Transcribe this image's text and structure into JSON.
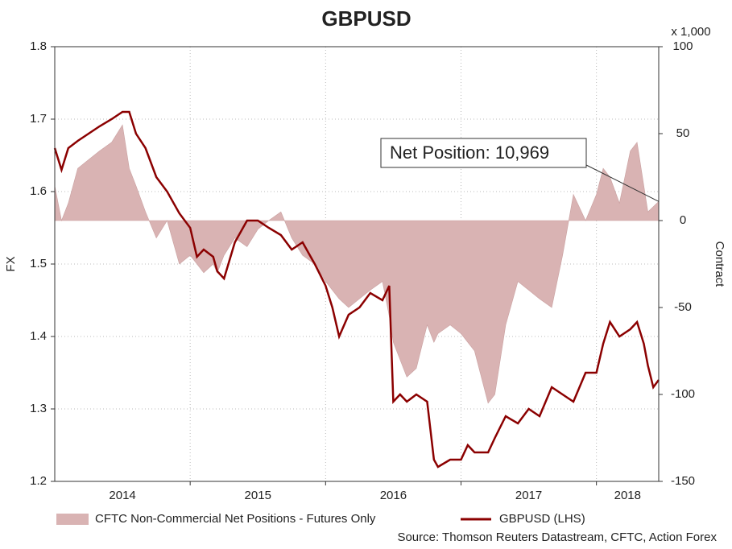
{
  "chart_data": {
    "type": "line-area",
    "title": "GBPUSD",
    "ylabel": "FX",
    "y2label": "Contract",
    "y2unit": "x 1,000",
    "xlim": [
      2014,
      2018.46
    ],
    "xgrid": [
      2015,
      2016,
      2017,
      2018
    ],
    "xticks": [
      {
        "value": 2014.5,
        "label": "2014"
      },
      {
        "value": 2015.5,
        "label": "2015"
      },
      {
        "value": 2016.5,
        "label": "2016"
      },
      {
        "value": 2017.5,
        "label": "2017"
      },
      {
        "value": 2018.23,
        "label": "2018"
      }
    ],
    "ylim": [
      1.2,
      1.8
    ],
    "yticks": [
      1.2,
      1.3,
      1.4,
      1.5,
      1.6,
      1.7,
      1.8
    ],
    "y2lim": [
      -150,
      100
    ],
    "y2ticks": [
      -150,
      -100,
      -50,
      0,
      50,
      100
    ],
    "grid": true,
    "legend": "bottom",
    "x": [
      2014.0,
      2014.05,
      2014.1,
      2014.17,
      2014.25,
      2014.33,
      2014.42,
      2014.5,
      2014.55,
      2014.6,
      2014.67,
      2014.75,
      2014.83,
      2014.92,
      2015.0,
      2015.05,
      2015.1,
      2015.17,
      2015.2,
      2015.25,
      2015.33,
      2015.42,
      2015.5,
      2015.58,
      2015.67,
      2015.75,
      2015.83,
      2015.92,
      2016.0,
      2016.05,
      2016.1,
      2016.17,
      2016.25,
      2016.33,
      2016.42,
      2016.47,
      2016.5,
      2016.55,
      2016.6,
      2016.67,
      2016.75,
      2016.8,
      2016.83,
      2016.92,
      2017.0,
      2017.05,
      2017.1,
      2017.2,
      2017.25,
      2017.33,
      2017.42,
      2017.5,
      2017.58,
      2017.67,
      2017.75,
      2017.83,
      2017.92,
      2018.0,
      2018.05,
      2018.1,
      2018.17,
      2018.25,
      2018.3,
      2018.35,
      2018.38,
      2018.42,
      2018.46
    ],
    "series": [
      {
        "name": "CFTC Non-Commercial Net Positions - Futures Only",
        "kind": "area",
        "axis": "y2",
        "color": "#d9b3b3",
        "values": [
          20,
          0,
          10,
          30,
          35,
          40,
          45,
          55,
          30,
          20,
          5,
          -10,
          0,
          -25,
          -20,
          -25,
          -30,
          -25,
          -30,
          -20,
          -10,
          -15,
          -5,
          0,
          5,
          -10,
          -20,
          -25,
          -35,
          -40,
          -45,
          -50,
          -45,
          -40,
          -35,
          -55,
          -70,
          -80,
          -90,
          -85,
          -60,
          -70,
          -65,
          -60,
          -65,
          -70,
          -75,
          -105,
          -100,
          -60,
          -35,
          -40,
          -45,
          -50,
          -20,
          15,
          0,
          15,
          30,
          25,
          10,
          40,
          45,
          20,
          5,
          8,
          10.969
        ]
      },
      {
        "name": "GBPUSD (LHS)",
        "kind": "line",
        "color": "#8b0000",
        "values": [
          1.66,
          1.63,
          1.66,
          1.67,
          1.68,
          1.69,
          1.7,
          1.71,
          1.71,
          1.68,
          1.66,
          1.62,
          1.6,
          1.57,
          1.55,
          1.51,
          1.52,
          1.51,
          1.49,
          1.48,
          1.53,
          1.56,
          1.56,
          1.55,
          1.54,
          1.52,
          1.53,
          1.5,
          1.47,
          1.44,
          1.4,
          1.43,
          1.44,
          1.46,
          1.45,
          1.47,
          1.31,
          1.32,
          1.31,
          1.32,
          1.31,
          1.23,
          1.22,
          1.23,
          1.23,
          1.25,
          1.24,
          1.24,
          1.26,
          1.29,
          1.28,
          1.3,
          1.29,
          1.33,
          1.32,
          1.31,
          1.35,
          1.35,
          1.39,
          1.42,
          1.4,
          1.41,
          1.42,
          1.39,
          1.36,
          1.33,
          1.34
        ]
      }
    ],
    "annotation": "Net Position: 10,969",
    "source": "Source: Thomson Reuters Datastream, CFTC, Action Forex"
  }
}
